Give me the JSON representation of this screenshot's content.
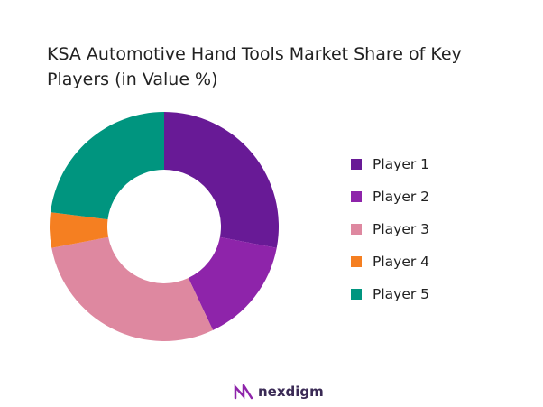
{
  "chart_data": {
    "type": "pie",
    "donut": true,
    "title": "KSA Automotive Hand Tools Market Share of Key Players (in Value %)",
    "categories": [
      "Player 1",
      "Player 2",
      "Player 3",
      "Player 4",
      "Player 5"
    ],
    "values": [
      28,
      15,
      29,
      5,
      23
    ],
    "colors": [
      "#681a96",
      "#8e24aa",
      "#de88a0",
      "#f57f21",
      "#00957f"
    ],
    "legend_position": "right"
  },
  "logo": {
    "text": "nexdigm",
    "color": "#8e24aa"
  }
}
